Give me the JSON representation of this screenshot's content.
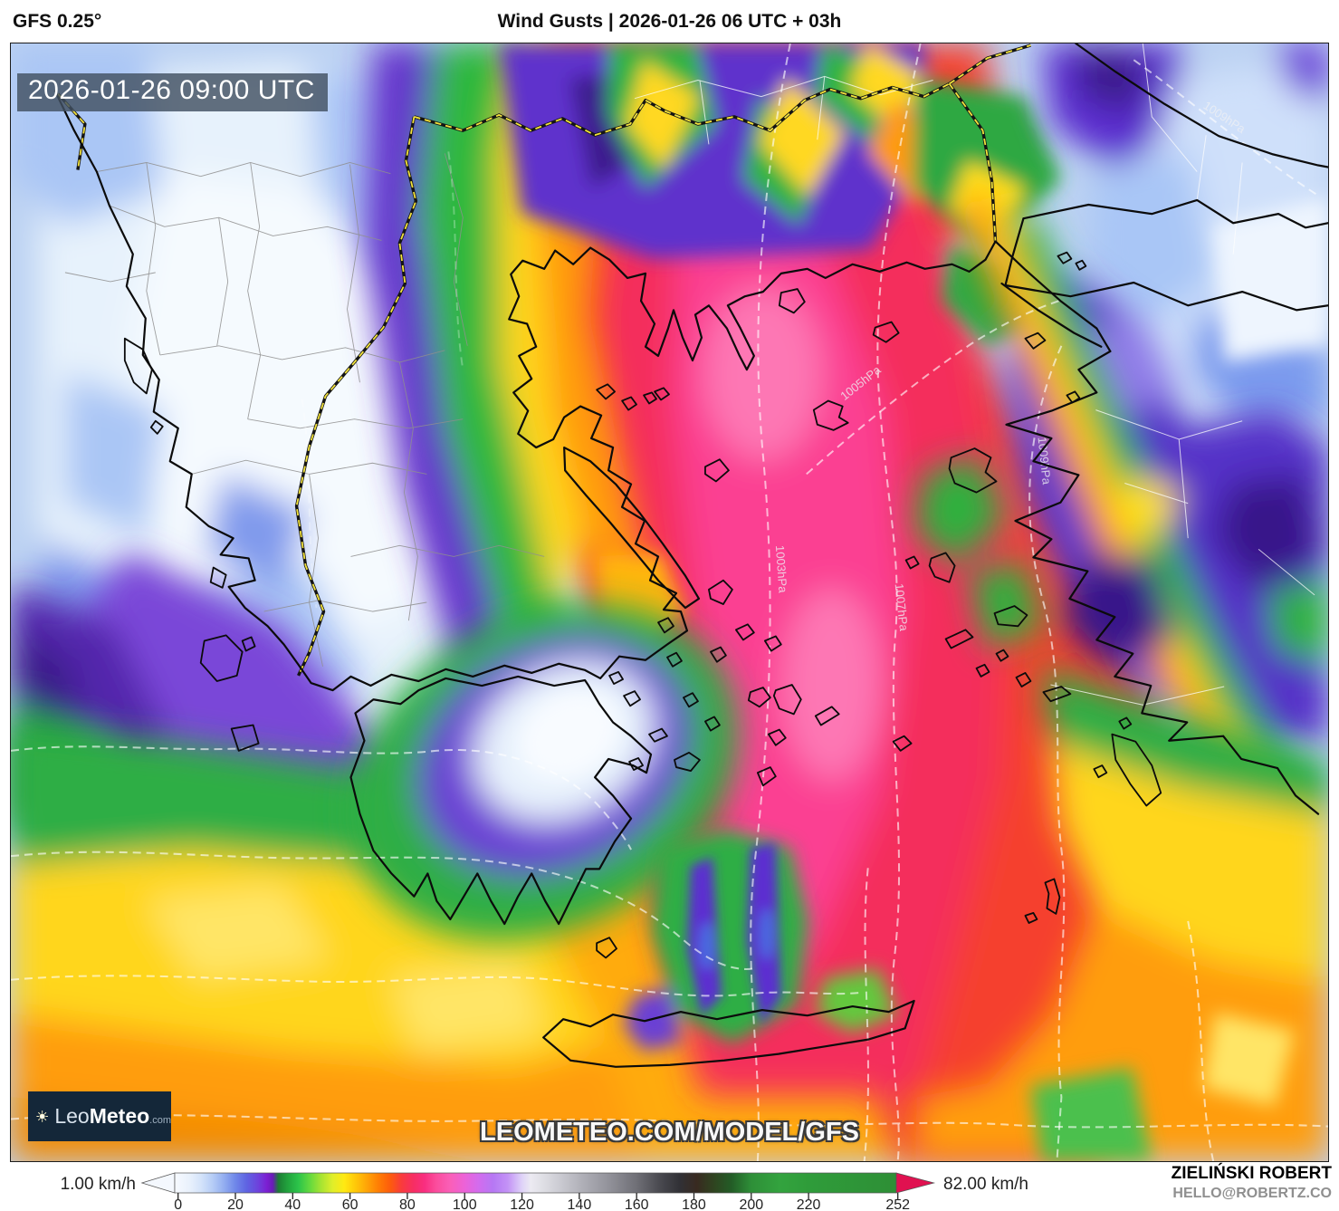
{
  "header": {
    "model": "GFS 0.25°",
    "title": "Wind Gusts | 2026-01-26 06 UTC + 03h"
  },
  "map": {
    "timestamp": "2026-01-26 09:00 UTC",
    "watermark": "LEOMETEO.COM/MODEL/GFS",
    "logo": {
      "leo": "Leo",
      "meteo": "Meteo",
      "tld": ".com"
    },
    "isobar_labels": [
      "1009hPa",
      "1009hPa",
      "1005hPa",
      "1003hPa",
      "1007hPa"
    ],
    "region": "Greece / Aegean Sea",
    "field": "wind gusts (km/h)"
  },
  "colorbar": {
    "min_label": "1.00 km/h",
    "max_label": "82.00 km/h",
    "unit": "km/h",
    "ticks": [
      0,
      20,
      40,
      60,
      80,
      100,
      120,
      140,
      160,
      180,
      200,
      220,
      252
    ],
    "stops": [
      {
        "v": 0,
        "c": "#f4f8fe"
      },
      {
        "v": 4,
        "c": "#e9f1fc"
      },
      {
        "v": 8,
        "c": "#d4e3fa"
      },
      {
        "v": 12,
        "c": "#b6cdf6"
      },
      {
        "v": 16,
        "c": "#93aef0"
      },
      {
        "v": 20,
        "c": "#6f87e9"
      },
      {
        "v": 24,
        "c": "#5f63e2"
      },
      {
        "v": 28,
        "c": "#6e41dc"
      },
      {
        "v": 31,
        "c": "#7c1fd2"
      },
      {
        "v": 33,
        "c": "#6a1cb8"
      },
      {
        "v": 35,
        "c": "#1d7c34"
      },
      {
        "v": 38,
        "c": "#21a13c"
      },
      {
        "v": 42,
        "c": "#2cc44a"
      },
      {
        "v": 46,
        "c": "#64d93e"
      },
      {
        "v": 50,
        "c": "#a8e432"
      },
      {
        "v": 54,
        "c": "#e0ee2a"
      },
      {
        "v": 58,
        "c": "#ffe912"
      },
      {
        "v": 62,
        "c": "#ffc708"
      },
      {
        "v": 66,
        "c": "#ffa307"
      },
      {
        "v": 70,
        "c": "#ff7d04"
      },
      {
        "v": 74,
        "c": "#fd5c0c"
      },
      {
        "v": 78,
        "c": "#f93b3c"
      },
      {
        "v": 82,
        "c": "#f72e62"
      },
      {
        "v": 86,
        "c": "#f92e80"
      },
      {
        "v": 90,
        "c": "#fb4c9c"
      },
      {
        "v": 95,
        "c": "#fa5fb8"
      },
      {
        "v": 100,
        "c": "#ec62d8"
      },
      {
        "v": 105,
        "c": "#d26cee"
      },
      {
        "v": 110,
        "c": "#b678f4"
      },
      {
        "v": 115,
        "c": "#c392f6"
      },
      {
        "v": 120,
        "c": "#dfd3f8"
      },
      {
        "v": 123,
        "c": "#eceaf2"
      },
      {
        "v": 127,
        "c": "#e0e0e6"
      },
      {
        "v": 132,
        "c": "#cfcfd6"
      },
      {
        "v": 140,
        "c": "#b3b3bb"
      },
      {
        "v": 150,
        "c": "#93939b"
      },
      {
        "v": 160,
        "c": "#6f6f76"
      },
      {
        "v": 168,
        "c": "#4a4a50"
      },
      {
        "v": 175,
        "c": "#313136"
      },
      {
        "v": 181,
        "c": "#382a20"
      },
      {
        "v": 187,
        "c": "#2f4420"
      },
      {
        "v": 193,
        "c": "#235c26"
      },
      {
        "v": 200,
        "c": "#2e8f38"
      },
      {
        "v": 210,
        "c": "#33a33e"
      },
      {
        "v": 220,
        "c": "#2f9c3a"
      },
      {
        "v": 228,
        "c": "#2e8f36"
      },
      {
        "v": 236,
        "c": "#6e4f31"
      },
      {
        "v": 242,
        "c": "#a72840"
      },
      {
        "v": 248,
        "c": "#cc1746"
      },
      {
        "v": 252,
        "c": "#e01150"
      }
    ]
  },
  "credits": {
    "name": "ZIELIŃSKI ROBERT",
    "email": "HELLO@ROBERTZ.CO"
  },
  "colors": {
    "timestamp_bg": "#425062",
    "logo_bg": "#142739",
    "border_dash_yellow": "#f3e33c",
    "coastline": "#0b0b0b",
    "isobar": "#ffffff"
  }
}
